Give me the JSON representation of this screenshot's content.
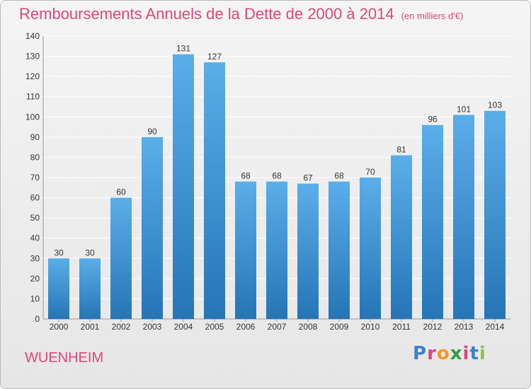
{
  "colors": {
    "title": "#e0457b",
    "bar_light": "#5aaee9",
    "bar_dark": "#2575b7",
    "grid": "#ffffff"
  },
  "logo": {
    "text": "Proxiti",
    "letter_colors": [
      "#3a83c6",
      "#e0457b",
      "#f39a26",
      "#2f9e3f",
      "#e0457b",
      "#3a83c6",
      "#8cc63e"
    ]
  },
  "chart_data": {
    "type": "bar",
    "title": "Remboursements Annuels de la Dette de 2000 à 2014",
    "unit_label": "(en milliers d'€)",
    "subject": "WUENHEIM",
    "categories": [
      "2000",
      "2001",
      "2002",
      "2003",
      "2004",
      "2005",
      "2006",
      "2007",
      "2008",
      "2009",
      "2010",
      "2011",
      "2012",
      "2013",
      "2014"
    ],
    "values": [
      30,
      30,
      60,
      90,
      131,
      127,
      68,
      68,
      67,
      68,
      70,
      81,
      96,
      101,
      103
    ],
    "value_labels": [
      "30",
      "30",
      "60",
      "90",
      "131",
      "127",
      "68",
      "68",
      "67",
      "68",
      "70",
      "81",
      "96",
      "101",
      "103"
    ],
    "y_ticks": [
      "0",
      "10",
      "20",
      "30",
      "40",
      "50",
      "60",
      "70",
      "80",
      "90",
      "100",
      "110",
      "120",
      "130",
      "140"
    ],
    "ylim": [
      0,
      140
    ],
    "xlabel": "",
    "ylabel": "",
    "grid": true
  }
}
